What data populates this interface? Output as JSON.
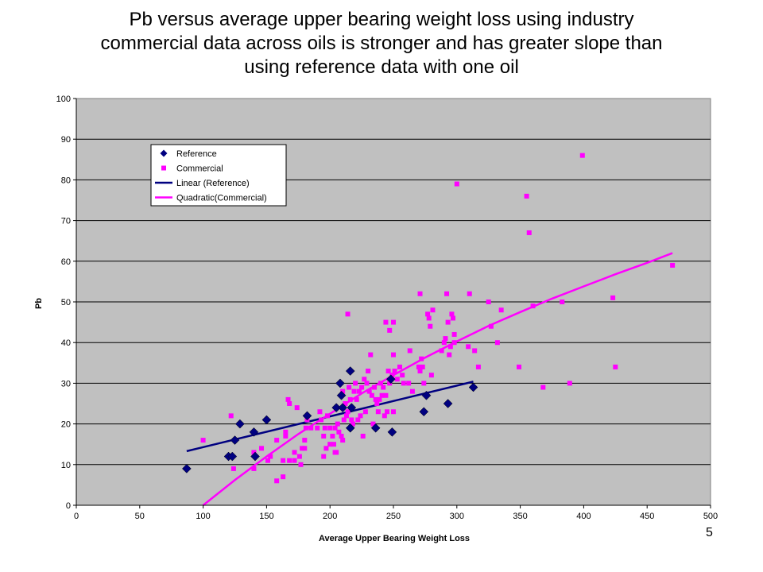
{
  "slide": {
    "title_lines": [
      "Pb versus average upper bearing weight loss using industry",
      "commercial data across oils is stronger and has greater slope than",
      "using reference data with one oil"
    ],
    "page_number": "5"
  },
  "chart_data": {
    "type": "scatter",
    "title": "",
    "xlabel": "Average Upper Bearing Weight Loss",
    "ylabel": "Pb",
    "xlim": [
      0,
      500
    ],
    "ylim": [
      0,
      100
    ],
    "x_ticks": [
      0,
      50,
      100,
      150,
      200,
      250,
      300,
      350,
      400,
      450,
      500
    ],
    "y_ticks": [
      0,
      10,
      20,
      30,
      40,
      50,
      60,
      70,
      80,
      90,
      100
    ],
    "grid": "horizontal",
    "plot_background": "#c0c0c0",
    "legend_position": "upper-left",
    "series": [
      {
        "name": "Reference",
        "kind": "points",
        "marker": "diamond",
        "color": "#000080",
        "points": [
          [
            87,
            9
          ],
          [
            120,
            12
          ],
          [
            123,
            12
          ],
          [
            125,
            16
          ],
          [
            129,
            20
          ],
          [
            140,
            18
          ],
          [
            141,
            12
          ],
          [
            150,
            21
          ],
          [
            182,
            22
          ],
          [
            205,
            24
          ],
          [
            208,
            30
          ],
          [
            209,
            27
          ],
          [
            210,
            24
          ],
          [
            216,
            33
          ],
          [
            217,
            24
          ],
          [
            216,
            19
          ],
          [
            236,
            19
          ],
          [
            248,
            31
          ],
          [
            249,
            18
          ],
          [
            274,
            23
          ],
          [
            276,
            27
          ],
          [
            293,
            25
          ],
          [
            313,
            29
          ]
        ]
      },
      {
        "name": "Commercial",
        "kind": "points",
        "marker": "square",
        "color": "#ff00ff",
        "points": [
          [
            100,
            16
          ],
          [
            122,
            22
          ],
          [
            124,
            9
          ],
          [
            140,
            13
          ],
          [
            140,
            9
          ],
          [
            146,
            14
          ],
          [
            151,
            11
          ],
          [
            153,
            12
          ],
          [
            158,
            6
          ],
          [
            158,
            16
          ],
          [
            163,
            11
          ],
          [
            163,
            7
          ],
          [
            165,
            17
          ],
          [
            165,
            18
          ],
          [
            167,
            26
          ],
          [
            168,
            25
          ],
          [
            168,
            11
          ],
          [
            172,
            11
          ],
          [
            172,
            13
          ],
          [
            174,
            24
          ],
          [
            176,
            12
          ],
          [
            177,
            10
          ],
          [
            178,
            14
          ],
          [
            180,
            16
          ],
          [
            181,
            19
          ],
          [
            180,
            14
          ],
          [
            182,
            21
          ],
          [
            185,
            19
          ],
          [
            190,
            19
          ],
          [
            192,
            23
          ],
          [
            193,
            21
          ],
          [
            195,
            17
          ],
          [
            195,
            12
          ],
          [
            196,
            19
          ],
          [
            197,
            14
          ],
          [
            198,
            22
          ],
          [
            200,
            19
          ],
          [
            200,
            15
          ],
          [
            202,
            17
          ],
          [
            203,
            15
          ],
          [
            204,
            19
          ],
          [
            204,
            13
          ],
          [
            205,
            13
          ],
          [
            206,
            20
          ],
          [
            207,
            18
          ],
          [
            209,
            17
          ],
          [
            210,
            16
          ],
          [
            210,
            28
          ],
          [
            211,
            21
          ],
          [
            212,
            25
          ],
          [
            213,
            22
          ],
          [
            214,
            23
          ],
          [
            214,
            47
          ],
          [
            215,
            29
          ],
          [
            216,
            26
          ],
          [
            217,
            21
          ],
          [
            218,
            20
          ],
          [
            219,
            28
          ],
          [
            220,
            30
          ],
          [
            221,
            26
          ],
          [
            222,
            21
          ],
          [
            223,
            28
          ],
          [
            224,
            22
          ],
          [
            225,
            29
          ],
          [
            226,
            17
          ],
          [
            227,
            31
          ],
          [
            228,
            23
          ],
          [
            229,
            30
          ],
          [
            230,
            33
          ],
          [
            231,
            28
          ],
          [
            232,
            37
          ],
          [
            233,
            27
          ],
          [
            234,
            20
          ],
          [
            235,
            29
          ],
          [
            236,
            26
          ],
          [
            237,
            25
          ],
          [
            238,
            23
          ],
          [
            239,
            26
          ],
          [
            240,
            30
          ],
          [
            241,
            27
          ],
          [
            242,
            29
          ],
          [
            243,
            22
          ],
          [
            244,
            45
          ],
          [
            244,
            27
          ],
          [
            245,
            23
          ],
          [
            246,
            33
          ],
          [
            247,
            30
          ],
          [
            247,
            43
          ],
          [
            249,
            32
          ],
          [
            250,
            45
          ],
          [
            250,
            37
          ],
          [
            250,
            23
          ],
          [
            251,
            33
          ],
          [
            253,
            31
          ],
          [
            255,
            34
          ],
          [
            257,
            32
          ],
          [
            258,
            30
          ],
          [
            262,
            30
          ],
          [
            263,
            38
          ],
          [
            265,
            28
          ],
          [
            270,
            34
          ],
          [
            271,
            33
          ],
          [
            271,
            52
          ],
          [
            272,
            36
          ],
          [
            273,
            34
          ],
          [
            274,
            30
          ],
          [
            277,
            47
          ],
          [
            278,
            46
          ],
          [
            279,
            44
          ],
          [
            280,
            32
          ],
          [
            281,
            48
          ],
          [
            288,
            38
          ],
          [
            290,
            40
          ],
          [
            291,
            41
          ],
          [
            292,
            52
          ],
          [
            293,
            45
          ],
          [
            294,
            37
          ],
          [
            295,
            39
          ],
          [
            296,
            47
          ],
          [
            297,
            46
          ],
          [
            298,
            42
          ],
          [
            298,
            40
          ],
          [
            300,
            79
          ],
          [
            309,
            39
          ],
          [
            310,
            52
          ],
          [
            314,
            38
          ],
          [
            317,
            34
          ],
          [
            325,
            50
          ],
          [
            327,
            44
          ],
          [
            332,
            40
          ],
          [
            335,
            48
          ],
          [
            349,
            34
          ],
          [
            355,
            76
          ],
          [
            357,
            67
          ],
          [
            360,
            49
          ],
          [
            368,
            29
          ],
          [
            383,
            50
          ],
          [
            389,
            30
          ],
          [
            399,
            86
          ],
          [
            423,
            51
          ],
          [
            425,
            34
          ],
          [
            470,
            59
          ]
        ]
      },
      {
        "name": "Linear (Reference)",
        "kind": "line",
        "color": "#000080",
        "points": [
          [
            87,
            13.3
          ],
          [
            313,
            30.4
          ]
        ]
      },
      {
        "name": "Quadratic(Commercial)",
        "kind": "line",
        "color": "#ff00ff",
        "points": [
          [
            100,
            0
          ],
          [
            125,
            6.2
          ],
          [
            150,
            12.0
          ],
          [
            175,
            17.5
          ],
          [
            200,
            22.5
          ],
          [
            225,
            27.5
          ],
          [
            250,
            32.0
          ],
          [
            275,
            36.3
          ],
          [
            300,
            40.3
          ],
          [
            325,
            44.1
          ],
          [
            350,
            47.5
          ],
          [
            375,
            50.8
          ],
          [
            400,
            53.8
          ],
          [
            425,
            56.8
          ],
          [
            450,
            59.6
          ],
          [
            470,
            62.0
          ]
        ]
      }
    ]
  }
}
